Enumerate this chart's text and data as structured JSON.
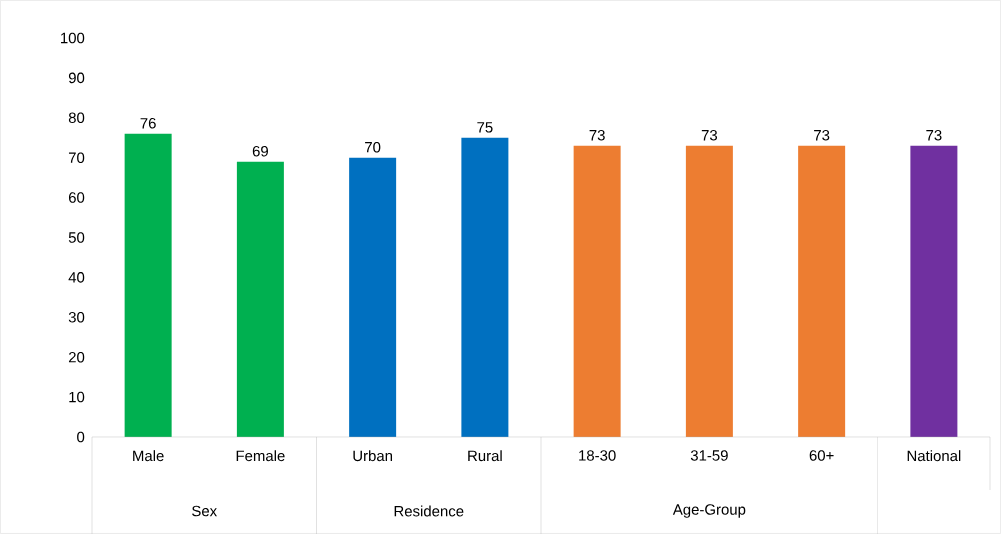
{
  "chart_data": {
    "type": "bar",
    "categories": [
      "Male",
      "Female",
      "Urban",
      "Rural",
      "18-30",
      "31-59",
      "60+",
      "National"
    ],
    "values": [
      76,
      69,
      70,
      75,
      73,
      73,
      73,
      73
    ],
    "colors": [
      "#00b050",
      "#00b050",
      "#0070c0",
      "#0070c0",
      "#ed7d31",
      "#ed7d31",
      "#ed7d31",
      "#7030a0"
    ],
    "ylim": [
      0,
      100
    ],
    "yticks": [
      0,
      10,
      20,
      30,
      40,
      50,
      60,
      70,
      80,
      90,
      100
    ],
    "data_labels": true,
    "annotations": [
      "Sex",
      "Residence",
      "Age-Group"
    ]
  }
}
